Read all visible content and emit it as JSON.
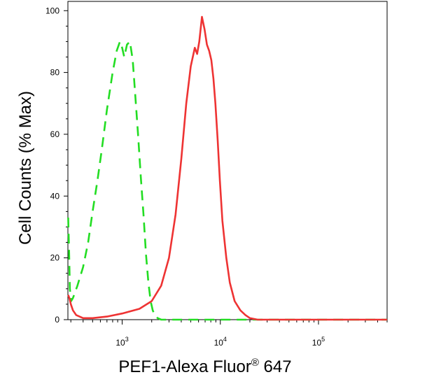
{
  "chart_data": {
    "type": "line",
    "xlabel": "PEF1-Alexa Fluor",
    "xlabel_sup": "®",
    "xlabel_suffix": " 647",
    "ylabel": "Cell Counts (% Max)",
    "x_scale": "log",
    "xlim": [
      280,
      500000
    ],
    "ylim": [
      0,
      103
    ],
    "y_ticks": [
      0,
      20,
      40,
      60,
      80,
      100
    ],
    "y_tick_labels": [
      "0",
      "20",
      "40",
      "60",
      "80",
      "100"
    ],
    "x_ticks": [
      1000,
      10000,
      100000
    ],
    "x_tick_labels": [
      {
        "base": "10",
        "exp": "3"
      },
      {
        "base": "10",
        "exp": "4"
      },
      {
        "base": "10",
        "exp": "5"
      }
    ],
    "grid": false,
    "legend": false,
    "series": [
      {
        "style": "dashed",
        "color": "#22dd22",
        "x": [
          282,
          288,
          293,
          302,
          315,
          350,
          400,
          450,
          500,
          560,
          620,
          700,
          800,
          880,
          950,
          1000,
          1050,
          1120,
          1200,
          1280,
          1350,
          1450,
          1550,
          1650,
          1750,
          1850,
          1950,
          2050,
          2150,
          2300,
          2500,
          3000,
          5000,
          10000,
          30000,
          100000,
          500000
        ],
        "y": [
          33,
          22,
          10,
          6,
          7,
          11,
          17,
          25,
          35,
          45,
          55,
          68,
          80,
          87,
          90,
          88,
          85,
          89,
          90,
          84,
          74,
          60,
          46,
          34,
          21,
          12,
          6,
          3,
          1.5,
          0.5,
          0,
          0,
          0,
          0,
          0,
          0,
          0
        ]
      },
      {
        "style": "solid",
        "color": "#ee3333",
        "x": [
          282,
          290,
          300,
          315,
          340,
          400,
          500,
          700,
          1000,
          1500,
          2000,
          2500,
          3000,
          3500,
          4000,
          4500,
          5000,
          5500,
          5800,
          6100,
          6500,
          6900,
          7300,
          7700,
          8100,
          8500,
          8900,
          9400,
          9900,
          10500,
          11500,
          12500,
          14000,
          16000,
          18000,
          20000,
          24000,
          30000,
          50000,
          100000,
          500000
        ],
        "y": [
          8,
          7,
          5,
          3,
          1.5,
          0.5,
          0.5,
          1,
          2,
          3.5,
          6,
          11,
          20,
          34,
          52,
          70,
          82,
          88,
          86,
          90,
          98,
          94,
          89,
          87,
          84,
          78,
          70,
          58,
          45,
          32,
          20,
          12,
          6,
          3,
          1.5,
          0.5,
          0,
          0,
          0,
          0,
          0
        ]
      }
    ]
  }
}
